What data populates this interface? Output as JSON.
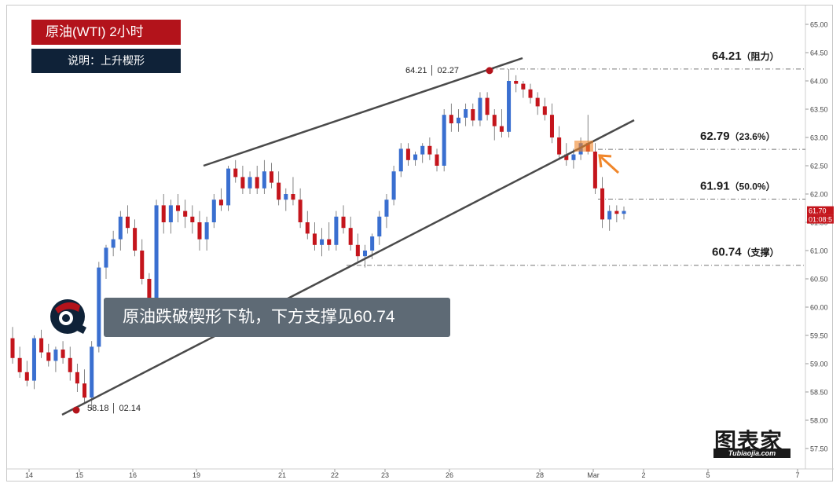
{
  "header": {
    "title": "原油(WTI)   2小时",
    "subtitle": "说明：上升楔形"
  },
  "caption": "原油跌破楔形下轨，下方支撑见60.74",
  "logo": {
    "cn": "图表家",
    "en": "Tubiaojia.com"
  },
  "chart_data": {
    "type": "candlestick",
    "y_axis": {
      "ticks": [
        "65.00",
        "64.50",
        "64.00",
        "63.50",
        "63.00",
        "62.50",
        "62.00",
        "61.50",
        "61.00",
        "60.50",
        "60.00",
        "59.50",
        "59.00",
        "58.50",
        "58.00",
        "57.50"
      ],
      "range": [
        57.5,
        65.0
      ]
    },
    "x_axis": {
      "tick_labels": [
        "14",
        "15",
        "16",
        "19",
        "21",
        "22",
        "23",
        "26",
        "28",
        "Mar",
        "2",
        "5",
        "7"
      ]
    },
    "price_label": {
      "value": "61.70",
      "countdown": "01:08:5"
    },
    "annotations": {
      "high_point": {
        "label": "64.21 │ 02.27",
        "value": 64.21
      },
      "low_point": {
        "label": "58.18 │ 02.14",
        "value": 58.18
      }
    },
    "levels": [
      {
        "value": 64.21,
        "label": "64.21",
        "note": "（阻力）"
      },
      {
        "value": 62.79,
        "label": "62.79",
        "note": "（23.6%）"
      },
      {
        "value": 61.91,
        "label": "61.91",
        "note": "（50.0%）"
      },
      {
        "value": 60.74,
        "label": "60.74",
        "note": "（支撑）"
      }
    ],
    "colors": {
      "up": "#3a6fd0",
      "down": "#c4151c",
      "marker": "#b3131b",
      "arrow": "#f0862a",
      "trend": "#4a4a4a"
    },
    "candles": [
      [
        59.45,
        59.65,
        59.0,
        59.1
      ],
      [
        59.1,
        59.3,
        58.75,
        58.85
      ],
      [
        58.85,
        59.05,
        58.6,
        58.7
      ],
      [
        58.7,
        59.5,
        58.55,
        59.45
      ],
      [
        59.45,
        59.6,
        59.1,
        59.2
      ],
      [
        59.2,
        59.35,
        58.95,
        59.05
      ],
      [
        59.05,
        59.3,
        58.85,
        59.25
      ],
      [
        59.25,
        59.4,
        59.0,
        59.1
      ],
      [
        59.1,
        59.3,
        58.7,
        58.85
      ],
      [
        58.85,
        59.0,
        58.5,
        58.65
      ],
      [
        58.65,
        58.9,
        58.3,
        58.4
      ],
      [
        58.4,
        59.4,
        58.18,
        59.3
      ],
      [
        59.3,
        60.8,
        59.2,
        60.7
      ],
      [
        60.7,
        61.1,
        60.5,
        61.05
      ],
      [
        61.05,
        61.35,
        60.9,
        61.2
      ],
      [
        61.2,
        61.7,
        61.0,
        61.6
      ],
      [
        61.6,
        61.8,
        61.3,
        61.4
      ],
      [
        61.4,
        61.55,
        60.9,
        61.0
      ],
      [
        61.0,
        61.2,
        60.4,
        60.5
      ],
      [
        60.5,
        60.6,
        59.9,
        60.0
      ],
      [
        60.0,
        61.9,
        59.9,
        61.8
      ],
      [
        61.8,
        62.0,
        61.3,
        61.5
      ],
      [
        61.5,
        61.9,
        61.3,
        61.8
      ],
      [
        61.8,
        62.0,
        61.5,
        61.7
      ],
      [
        61.7,
        61.9,
        61.4,
        61.6
      ],
      [
        61.6,
        61.8,
        61.3,
        61.5
      ],
      [
        61.5,
        61.7,
        61.0,
        61.2
      ],
      [
        61.2,
        61.6,
        61.0,
        61.5
      ],
      [
        61.5,
        62.0,
        61.4,
        61.9
      ],
      [
        61.9,
        62.1,
        61.7,
        61.8
      ],
      [
        61.8,
        62.5,
        61.7,
        62.45
      ],
      [
        62.45,
        62.6,
        62.2,
        62.3
      ],
      [
        62.3,
        62.5,
        62.0,
        62.1
      ],
      [
        62.1,
        62.4,
        62.0,
        62.3
      ],
      [
        62.3,
        62.5,
        62.0,
        62.1
      ],
      [
        62.1,
        62.6,
        62.0,
        62.4
      ],
      [
        62.4,
        62.55,
        62.1,
        62.2
      ],
      [
        62.2,
        62.4,
        61.8,
        61.9
      ],
      [
        61.9,
        62.1,
        61.7,
        62.0
      ],
      [
        62.0,
        62.3,
        61.8,
        61.9
      ],
      [
        61.9,
        62.1,
        61.4,
        61.5
      ],
      [
        61.5,
        61.7,
        61.2,
        61.3
      ],
      [
        61.3,
        61.5,
        61.0,
        61.1
      ],
      [
        61.1,
        61.4,
        60.9,
        61.2
      ],
      [
        61.2,
        61.5,
        61.0,
        61.1
      ],
      [
        61.1,
        61.7,
        61.0,
        61.6
      ],
      [
        61.6,
        61.8,
        61.3,
        61.4
      ],
      [
        61.4,
        61.6,
        61.0,
        61.1
      ],
      [
        61.1,
        61.3,
        60.8,
        60.9
      ],
      [
        60.9,
        61.1,
        60.7,
        61.0
      ],
      [
        61.0,
        61.3,
        60.85,
        61.25
      ],
      [
        61.25,
        61.7,
        61.1,
        61.6
      ],
      [
        61.6,
        62.0,
        61.4,
        61.9
      ],
      [
        61.9,
        62.5,
        61.8,
        62.4
      ],
      [
        62.4,
        62.9,
        62.3,
        62.8
      ],
      [
        62.8,
        62.9,
        62.5,
        62.6
      ],
      [
        62.6,
        62.75,
        62.5,
        62.7
      ],
      [
        62.7,
        62.9,
        62.55,
        62.85
      ],
      [
        62.85,
        63.0,
        62.6,
        62.7
      ],
      [
        62.7,
        62.8,
        62.4,
        62.5
      ],
      [
        62.5,
        63.5,
        62.4,
        63.4
      ],
      [
        63.4,
        63.6,
        63.1,
        63.25
      ],
      [
        63.25,
        63.5,
        63.1,
        63.35
      ],
      [
        63.35,
        63.6,
        63.2,
        63.5
      ],
      [
        63.5,
        63.6,
        63.2,
        63.3
      ],
      [
        63.3,
        63.8,
        63.2,
        63.7
      ],
      [
        63.7,
        63.8,
        63.3,
        63.4
      ],
      [
        63.4,
        63.5,
        62.95,
        63.2
      ],
      [
        63.2,
        63.5,
        63.0,
        63.1
      ],
      [
        63.1,
        64.21,
        63.0,
        64.0
      ],
      [
        64.0,
        64.1,
        63.8,
        63.95
      ],
      [
        63.95,
        64.0,
        63.7,
        63.85
      ],
      [
        63.85,
        63.95,
        63.6,
        63.7
      ],
      [
        63.7,
        63.8,
        63.4,
        63.55
      ],
      [
        63.55,
        63.7,
        63.3,
        63.4
      ],
      [
        63.4,
        63.6,
        62.9,
        63.0
      ],
      [
        63.0,
        63.2,
        62.6,
        62.7
      ],
      [
        62.7,
        62.9,
        62.5,
        62.6
      ],
      [
        62.6,
        62.8,
        62.45,
        62.7
      ],
      [
        62.7,
        63.0,
        62.6,
        62.9
      ],
      [
        62.9,
        63.4,
        62.7,
        62.75
      ],
      [
        62.75,
        62.9,
        62.0,
        62.1
      ],
      [
        62.1,
        62.3,
        61.4,
        61.55
      ],
      [
        61.55,
        61.8,
        61.35,
        61.7
      ],
      [
        61.7,
        61.8,
        61.5,
        61.65
      ],
      [
        61.65,
        61.78,
        61.55,
        61.7
      ]
    ]
  }
}
